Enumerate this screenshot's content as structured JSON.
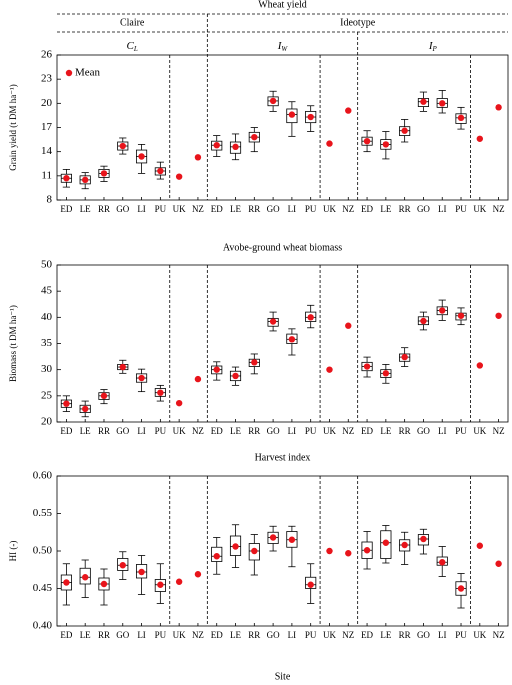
{
  "chart_data": [
    {
      "type": "box",
      "title": "Wheat yield",
      "ylabel": "Grain yield (t DM ha⁻¹)",
      "header": {
        "groups": [
          {
            "name": "Claire",
            "variants": [
              {
                "symbol": "C",
                "subscript": "L"
              }
            ]
          },
          {
            "name": "Ideotype",
            "variants": [
              {
                "symbol": "I",
                "subscript": "W"
              },
              {
                "symbol": "I",
                "subscript": "P"
              }
            ]
          }
        ]
      },
      "legend": {
        "label": "Mean",
        "position": "upper left"
      },
      "mean_color": "#e8141b",
      "categories": [
        "ED",
        "LE",
        "RR",
        "GO",
        "LI",
        "PU",
        "UK",
        "NZ",
        "ED",
        "LE",
        "RR",
        "GO",
        "LI",
        "PU",
        "UK",
        "NZ",
        "ED",
        "LE",
        "RR",
        "GO",
        "LI",
        "PU",
        "UK",
        "NZ"
      ],
      "ylim": [
        8,
        26
      ],
      "yticks": [
        8,
        11,
        14,
        17,
        20,
        23,
        26
      ],
      "mean": [
        10.7,
        10.5,
        11.3,
        14.7,
        13.4,
        11.6,
        10.9,
        13.3,
        14.8,
        14.6,
        15.8,
        20.3,
        18.6,
        18.3,
        15.0,
        19.1,
        15.3,
        14.9,
        16.6,
        20.2,
        20.0,
        18.2,
        15.6,
        19.5
      ],
      "whisker_low": [
        9.6,
        9.4,
        10.3,
        13.7,
        11.3,
        10.6,
        null,
        null,
        13.4,
        13.0,
        14.0,
        19.0,
        15.9,
        16.5,
        null,
        null,
        14.0,
        13.1,
        15.2,
        19.0,
        18.8,
        16.8,
        null,
        null
      ],
      "q1": [
        10.2,
        10.0,
        10.8,
        14.2,
        12.6,
        11.1,
        null,
        null,
        14.2,
        13.8,
        15.2,
        19.7,
        17.6,
        17.6,
        null,
        null,
        14.8,
        14.3,
        16.0,
        19.6,
        19.5,
        17.5,
        null,
        null
      ],
      "median": [
        10.7,
        10.5,
        11.3,
        14.7,
        13.4,
        11.6,
        null,
        null,
        14.8,
        14.6,
        15.8,
        20.3,
        18.6,
        18.3,
        null,
        null,
        15.3,
        14.9,
        16.6,
        20.2,
        20.0,
        18.2,
        null,
        null
      ],
      "q3": [
        11.2,
        11.0,
        11.8,
        15.2,
        14.2,
        12.0,
        null,
        null,
        15.3,
        15.2,
        16.4,
        20.8,
        19.3,
        19.0,
        null,
        null,
        15.8,
        15.5,
        17.1,
        20.6,
        20.6,
        18.7,
        null,
        null
      ],
      "whisker_high": [
        11.8,
        11.4,
        12.2,
        15.7,
        14.9,
        12.7,
        null,
        null,
        16.0,
        16.2,
        17.0,
        21.5,
        20.2,
        19.7,
        null,
        null,
        16.6,
        16.5,
        18.0,
        21.4,
        21.6,
        19.5,
        null,
        null
      ]
    },
    {
      "type": "box",
      "title": "Avobe-ground wheat biomass",
      "ylabel": "Biomass (t DM ha⁻¹)",
      "mean_color": "#e8141b",
      "categories": [
        "ED",
        "LE",
        "RR",
        "GO",
        "LI",
        "PU",
        "UK",
        "NZ",
        "ED",
        "LE",
        "RR",
        "GO",
        "LI",
        "PU",
        "UK",
        "NZ",
        "ED",
        "LE",
        "RR",
        "GO",
        "LI",
        "PU",
        "UK",
        "NZ"
      ],
      "ylim": [
        20,
        50
      ],
      "yticks": [
        20,
        25,
        30,
        35,
        40,
        45,
        50
      ],
      "mean": [
        23.5,
        22.5,
        25.0,
        30.5,
        28.4,
        25.6,
        23.6,
        28.2,
        30.0,
        28.8,
        31.4,
        39.2,
        35.8,
        40.0,
        30.0,
        38.4,
        30.6,
        29.3,
        32.4,
        39.3,
        41.3,
        40.3,
        30.8,
        40.3
      ],
      "whisker_low": [
        22.0,
        21.0,
        23.5,
        29.3,
        25.8,
        24.0,
        null,
        null,
        28.0,
        27.0,
        29.2,
        37.4,
        32.8,
        38.0,
        null,
        null,
        28.6,
        27.4,
        30.6,
        37.6,
        39.4,
        38.6,
        null,
        null
      ],
      "q1": [
        22.8,
        21.8,
        24.3,
        30.0,
        27.6,
        24.9,
        null,
        null,
        29.2,
        27.9,
        30.6,
        38.3,
        35.0,
        39.2,
        null,
        null,
        29.8,
        28.5,
        31.6,
        38.6,
        40.5,
        39.5,
        null,
        null
      ],
      "median": [
        23.5,
        22.5,
        25.0,
        30.5,
        28.4,
        25.6,
        null,
        null,
        30.0,
        28.8,
        31.4,
        39.2,
        35.8,
        40.0,
        null,
        null,
        30.6,
        29.3,
        32.4,
        39.3,
        41.3,
        40.3,
        null,
        null
      ],
      "q3": [
        24.2,
        23.2,
        25.6,
        31.0,
        29.2,
        26.4,
        null,
        null,
        30.7,
        29.7,
        32.0,
        39.8,
        36.8,
        41.0,
        null,
        null,
        31.4,
        30.0,
        33.0,
        40.1,
        42.0,
        40.8,
        null,
        null
      ],
      "whisker_high": [
        25.0,
        24.0,
        26.2,
        31.8,
        30.1,
        27.0,
        null,
        null,
        31.5,
        30.5,
        33.0,
        41.0,
        37.8,
        42.3,
        null,
        null,
        32.4,
        31.0,
        34.2,
        41.0,
        43.3,
        41.8,
        null,
        null
      ]
    },
    {
      "type": "box",
      "title": "Harvest index",
      "ylabel": "HI (-)",
      "xlabel": "Site",
      "mean_color": "#e8141b",
      "categories": [
        "ED",
        "LE",
        "RR",
        "GO",
        "LI",
        "PU",
        "UK",
        "NZ",
        "ED",
        "LE",
        "RR",
        "GO",
        "LI",
        "PU",
        "UK",
        "NZ",
        "ED",
        "LE",
        "RR",
        "GO",
        "LI",
        "PU",
        "UK",
        "NZ"
      ],
      "ylim": [
        0.4,
        0.6
      ],
      "yticks": [
        {
          "value": 0.4,
          "label": "0.40"
        },
        0.45,
        {
          "value": 0.5,
          "label": "0.50"
        },
        0.55,
        {
          "value": 0.6,
          "label": "0.60"
        }
      ],
      "mean": [
        0.458,
        0.465,
        0.456,
        0.481,
        0.472,
        0.455,
        0.459,
        0.469,
        0.493,
        0.506,
        0.5,
        0.518,
        0.515,
        0.455,
        0.5,
        0.497,
        0.501,
        0.511,
        0.508,
        0.516,
        0.485,
        0.45,
        0.507,
        0.483
      ],
      "whisker_low": [
        0.428,
        0.438,
        0.428,
        0.462,
        0.442,
        0.43,
        null,
        null,
        0.469,
        0.478,
        0.468,
        0.5,
        0.479,
        0.43,
        null,
        null,
        0.476,
        0.484,
        0.482,
        0.496,
        0.466,
        0.424,
        null,
        null
      ],
      "q1": [
        0.448,
        0.456,
        0.448,
        0.474,
        0.464,
        0.446,
        null,
        null,
        0.486,
        0.494,
        0.488,
        0.51,
        0.505,
        0.45,
        null,
        null,
        0.49,
        0.49,
        0.5,
        0.508,
        0.481,
        0.441,
        null,
        null
      ],
      "median": [
        0.458,
        0.465,
        0.456,
        0.481,
        0.472,
        0.455,
        null,
        null,
        0.493,
        0.506,
        0.5,
        0.518,
        0.515,
        0.455,
        null,
        null,
        0.501,
        0.511,
        0.508,
        0.516,
        0.485,
        0.45,
        null,
        null
      ],
      "q3": [
        0.468,
        0.477,
        0.464,
        0.49,
        0.482,
        0.462,
        null,
        null,
        0.505,
        0.52,
        0.51,
        0.525,
        0.526,
        0.465,
        null,
        null,
        0.512,
        0.527,
        0.515,
        0.522,
        0.492,
        0.459,
        null,
        null
      ],
      "whisker_high": [
        0.483,
        0.488,
        0.476,
        0.499,
        0.494,
        0.483,
        null,
        null,
        0.518,
        0.535,
        0.522,
        0.533,
        0.533,
        0.483,
        null,
        null,
        0.526,
        0.534,
        0.525,
        0.529,
        0.506,
        0.47,
        null,
        null
      ]
    }
  ]
}
